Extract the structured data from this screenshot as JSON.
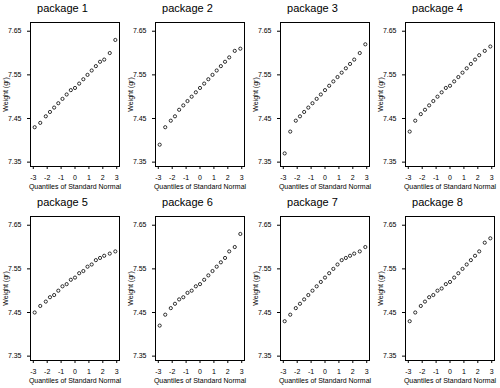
{
  "chart_data": [
    {
      "type": "scatter",
      "title": "package 1",
      "x_label": "Quantiles of Standard Normal",
      "y_label": "Weight (gr)",
      "marker": "circle",
      "color": "#000000",
      "x": [
        -2.9,
        -2.5,
        -2.1,
        -1.8,
        -1.5,
        -1.2,
        -0.9,
        -0.6,
        -0.3,
        0,
        0.3,
        0.6,
        0.9,
        1.2,
        1.5,
        1.8,
        2.1,
        2.5,
        2.9
      ],
      "values": [
        7.43,
        7.44,
        7.455,
        7.465,
        7.475,
        7.485,
        7.495,
        7.505,
        7.515,
        7.52,
        7.53,
        7.54,
        7.55,
        7.56,
        7.57,
        7.58,
        7.585,
        7.6,
        7.63
      ],
      "xlim": [
        -3.2,
        3.2
      ],
      "xticks": [
        -3,
        -2,
        -1,
        0,
        1,
        2,
        3
      ],
      "ylim": [
        7.34,
        7.67
      ],
      "yticks": [
        {
          "value": 7.35,
          "label": "7.35"
        },
        {
          "value": 7.45,
          "label": "7.45"
        },
        {
          "value": 7.55,
          "label": "7.55"
        },
        {
          "value": 7.65,
          "label": "7.65"
        }
      ]
    },
    {
      "type": "scatter",
      "title": "package 2",
      "x_label": "Quantiles of Standard Normal",
      "y_label": "Weight (gr)",
      "marker": "circle",
      "color": "#000000",
      "x": [
        -2.9,
        -2.5,
        -2.1,
        -1.8,
        -1.5,
        -1.2,
        -0.9,
        -0.6,
        -0.3,
        0,
        0.3,
        0.6,
        0.9,
        1.2,
        1.5,
        1.8,
        2.1,
        2.5,
        2.9
      ],
      "values": [
        7.39,
        7.43,
        7.445,
        7.455,
        7.47,
        7.48,
        7.49,
        7.5,
        7.51,
        7.52,
        7.53,
        7.54,
        7.55,
        7.56,
        7.57,
        7.58,
        7.59,
        7.605,
        7.61
      ],
      "xlim": [
        -3.2,
        3.2
      ],
      "xticks": [
        -3,
        -2,
        -1,
        0,
        1,
        2,
        3
      ],
      "ylim": [
        7.34,
        7.67
      ],
      "yticks": [
        {
          "value": 7.35,
          "label": "7.35"
        },
        {
          "value": 7.45,
          "label": "7.45"
        },
        {
          "value": 7.55,
          "label": "7.55"
        },
        {
          "value": 7.65,
          "label": "7.65"
        }
      ]
    },
    {
      "type": "scatter",
      "title": "package 3",
      "x_label": "Quantiles of Standard Normal",
      "y_label": "Weight (gr)",
      "marker": "circle",
      "color": "#000000",
      "x": [
        -2.9,
        -2.5,
        -2.1,
        -1.8,
        -1.5,
        -1.2,
        -0.9,
        -0.6,
        -0.3,
        0,
        0.3,
        0.6,
        0.9,
        1.2,
        1.5,
        1.8,
        2.1,
        2.5,
        2.9
      ],
      "values": [
        7.37,
        7.42,
        7.445,
        7.455,
        7.465,
        7.475,
        7.485,
        7.495,
        7.505,
        7.515,
        7.525,
        7.535,
        7.545,
        7.555,
        7.565,
        7.575,
        7.585,
        7.6,
        7.62
      ],
      "xlim": [
        -3.2,
        3.2
      ],
      "xticks": [
        -3,
        -2,
        -1,
        0,
        1,
        2,
        3
      ],
      "ylim": [
        7.34,
        7.67
      ],
      "yticks": [
        {
          "value": 7.35,
          "label": "7.35"
        },
        {
          "value": 7.45,
          "label": "7.45"
        },
        {
          "value": 7.55,
          "label": "7.55"
        },
        {
          "value": 7.65,
          "label": "7.65"
        }
      ]
    },
    {
      "type": "scatter",
      "title": "package 4",
      "x_label": "Quantiles of Standard Normal",
      "y_label": "Weight (gr)",
      "marker": "circle",
      "color": "#000000",
      "x": [
        -2.9,
        -2.5,
        -2.1,
        -1.8,
        -1.5,
        -1.2,
        -0.9,
        -0.6,
        -0.3,
        0,
        0.3,
        0.6,
        0.9,
        1.2,
        1.5,
        1.8,
        2.1,
        2.5,
        2.9
      ],
      "values": [
        7.42,
        7.445,
        7.46,
        7.47,
        7.48,
        7.49,
        7.5,
        7.51,
        7.52,
        7.525,
        7.535,
        7.545,
        7.555,
        7.565,
        7.575,
        7.585,
        7.595,
        7.605,
        7.615
      ],
      "xlim": [
        -3.2,
        3.2
      ],
      "xticks": [
        -3,
        -2,
        -1,
        0,
        1,
        2,
        3
      ],
      "ylim": [
        7.34,
        7.67
      ],
      "yticks": [
        {
          "value": 7.35,
          "label": "7.35"
        },
        {
          "value": 7.45,
          "label": "7.45"
        },
        {
          "value": 7.55,
          "label": "7.55"
        },
        {
          "value": 7.65,
          "label": "7.65"
        }
      ]
    },
    {
      "type": "scatter",
      "title": "package 5",
      "x_label": "Quantiles of Standard Normal",
      "y_label": "Weight (gr)",
      "marker": "circle",
      "color": "#000000",
      "x": [
        -2.9,
        -2.5,
        -2.1,
        -1.8,
        -1.5,
        -1.2,
        -0.9,
        -0.6,
        -0.3,
        0,
        0.3,
        0.6,
        0.9,
        1.2,
        1.5,
        1.8,
        2.1,
        2.5,
        2.9
      ],
      "values": [
        7.45,
        7.465,
        7.475,
        7.485,
        7.49,
        7.5,
        7.51,
        7.515,
        7.525,
        7.53,
        7.54,
        7.545,
        7.555,
        7.56,
        7.57,
        7.575,
        7.58,
        7.585,
        7.59
      ],
      "xlim": [
        -3.2,
        3.2
      ],
      "xticks": [
        -3,
        -2,
        -1,
        0,
        1,
        2,
        3
      ],
      "ylim": [
        7.34,
        7.67
      ],
      "yticks": [
        {
          "value": 7.35,
          "label": "7.35"
        },
        {
          "value": 7.45,
          "label": "7.45"
        },
        {
          "value": 7.55,
          "label": "7.55"
        },
        {
          "value": 7.65,
          "label": "7.65"
        }
      ]
    },
    {
      "type": "scatter",
      "title": "package 6",
      "x_label": "Quantiles of Standard Normal",
      "y_label": "Weight (gr)",
      "marker": "circle",
      "color": "#000000",
      "x": [
        -2.9,
        -2.5,
        -2.1,
        -1.8,
        -1.5,
        -1.2,
        -0.9,
        -0.6,
        -0.3,
        0,
        0.3,
        0.6,
        0.9,
        1.2,
        1.5,
        1.8,
        2.1,
        2.5,
        2.9
      ],
      "values": [
        7.42,
        7.445,
        7.46,
        7.47,
        7.48,
        7.485,
        7.495,
        7.5,
        7.51,
        7.515,
        7.525,
        7.535,
        7.545,
        7.555,
        7.565,
        7.575,
        7.59,
        7.6,
        7.63
      ],
      "xlim": [
        -3.2,
        3.2
      ],
      "xticks": [
        -3,
        -2,
        -1,
        0,
        1,
        2,
        3
      ],
      "ylim": [
        7.34,
        7.67
      ],
      "yticks": [
        {
          "value": 7.35,
          "label": "7.35"
        },
        {
          "value": 7.45,
          "label": "7.45"
        },
        {
          "value": 7.55,
          "label": "7.55"
        },
        {
          "value": 7.65,
          "label": "7.65"
        }
      ]
    },
    {
      "type": "scatter",
      "title": "package 7",
      "x_label": "Quantiles of Standard Normal",
      "y_label": "Weight (gr)",
      "marker": "circle",
      "color": "#000000",
      "x": [
        -2.9,
        -2.5,
        -2.1,
        -1.8,
        -1.5,
        -1.2,
        -0.9,
        -0.6,
        -0.3,
        0,
        0.3,
        0.6,
        0.9,
        1.2,
        1.5,
        1.8,
        2.1,
        2.5,
        2.9
      ],
      "values": [
        7.43,
        7.445,
        7.46,
        7.47,
        7.48,
        7.49,
        7.5,
        7.51,
        7.52,
        7.53,
        7.54,
        7.55,
        7.56,
        7.57,
        7.575,
        7.58,
        7.585,
        7.59,
        7.6
      ],
      "xlim": [
        -3.2,
        3.2
      ],
      "xticks": [
        -3,
        -2,
        -1,
        0,
        1,
        2,
        3
      ],
      "ylim": [
        7.34,
        7.67
      ],
      "yticks": [
        {
          "value": 7.35,
          "label": "7.35"
        },
        {
          "value": 7.45,
          "label": "7.45"
        },
        {
          "value": 7.55,
          "label": "7.55"
        },
        {
          "value": 7.65,
          "label": "7.65"
        }
      ]
    },
    {
      "type": "scatter",
      "title": "package 8",
      "x_label": "Quantiles of Standard Normal",
      "y_label": "Weight (gr)",
      "marker": "circle",
      "color": "#000000",
      "x": [
        -2.9,
        -2.5,
        -2.1,
        -1.8,
        -1.5,
        -1.2,
        -0.9,
        -0.6,
        -0.3,
        0,
        0.3,
        0.6,
        0.9,
        1.2,
        1.5,
        1.8,
        2.1,
        2.5,
        2.9
      ],
      "values": [
        7.43,
        7.45,
        7.465,
        7.475,
        7.485,
        7.49,
        7.5,
        7.505,
        7.515,
        7.52,
        7.53,
        7.54,
        7.55,
        7.56,
        7.57,
        7.58,
        7.59,
        7.61,
        7.62
      ],
      "xlim": [
        -3.2,
        3.2
      ],
      "xticks": [
        -3,
        -2,
        -1,
        0,
        1,
        2,
        3
      ],
      "ylim": [
        7.34,
        7.67
      ],
      "yticks": [
        {
          "value": 7.35,
          "label": "7.35"
        },
        {
          "value": 7.45,
          "label": "7.45"
        },
        {
          "value": 7.55,
          "label": "7.55"
        },
        {
          "value": 7.65,
          "label": "7.65"
        }
      ]
    }
  ]
}
